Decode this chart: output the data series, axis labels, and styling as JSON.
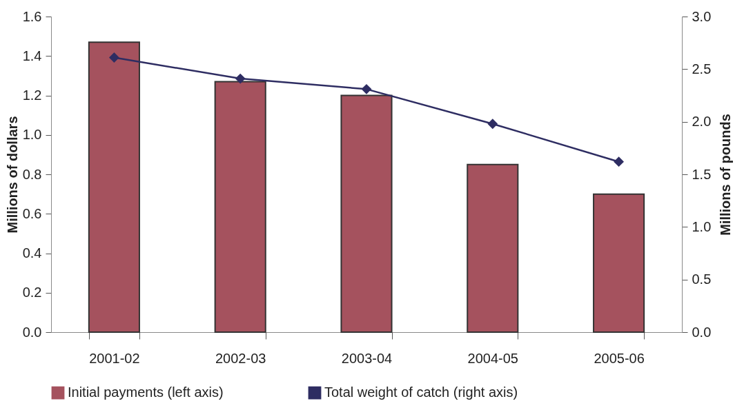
{
  "chart_data": {
    "type": "bar",
    "categories": [
      "2001-02",
      "2002-03",
      "2003-04",
      "2004-05",
      "2005-06"
    ],
    "ylabel": "Millions of dollars",
    "y2label": "Millions of pounds",
    "ylim": [
      0,
      1.6
    ],
    "yticks": [
      {
        "value": 0,
        "label": "0.0"
      },
      {
        "value": 0.2,
        "label": "0.2"
      },
      {
        "value": 0.4,
        "label": "0.4"
      },
      {
        "value": 0.6,
        "label": "0.6"
      },
      {
        "value": 0.8,
        "label": "0.8"
      },
      {
        "value": 1,
        "label": "1.0"
      },
      {
        "value": 1.2,
        "label": "1.2"
      },
      {
        "value": 1.4,
        "label": "1.4"
      },
      {
        "value": 1.6,
        "label": "1.6"
      }
    ],
    "y2lim": [
      0,
      3
    ],
    "y2ticks": [
      {
        "value": 0,
        "label": "0.0"
      },
      {
        "value": 0.5,
        "label": "0.5"
      },
      {
        "value": 1,
        "label": "1.0"
      },
      {
        "value": 1.5,
        "label": "1.5"
      },
      {
        "value": 2,
        "label": "2.0"
      },
      {
        "value": 2.5,
        "label": "2.5"
      },
      {
        "value": 3,
        "label": "3.0"
      }
    ],
    "legend": "bottom",
    "grid": false,
    "series": [
      {
        "name": "Initial payments (left axis)",
        "type": "bar",
        "color": "#a5525e",
        "values": [
          1.47,
          1.27,
          1.2,
          0.85,
          0.7
        ]
      },
      {
        "name": "Total weight of catch (right axis)",
        "type": "line",
        "axis": "y2",
        "marker": "diamond",
        "color": "#2e2d62",
        "values": [
          2.61,
          2.41,
          2.31,
          1.98,
          1.62
        ]
      }
    ]
  }
}
